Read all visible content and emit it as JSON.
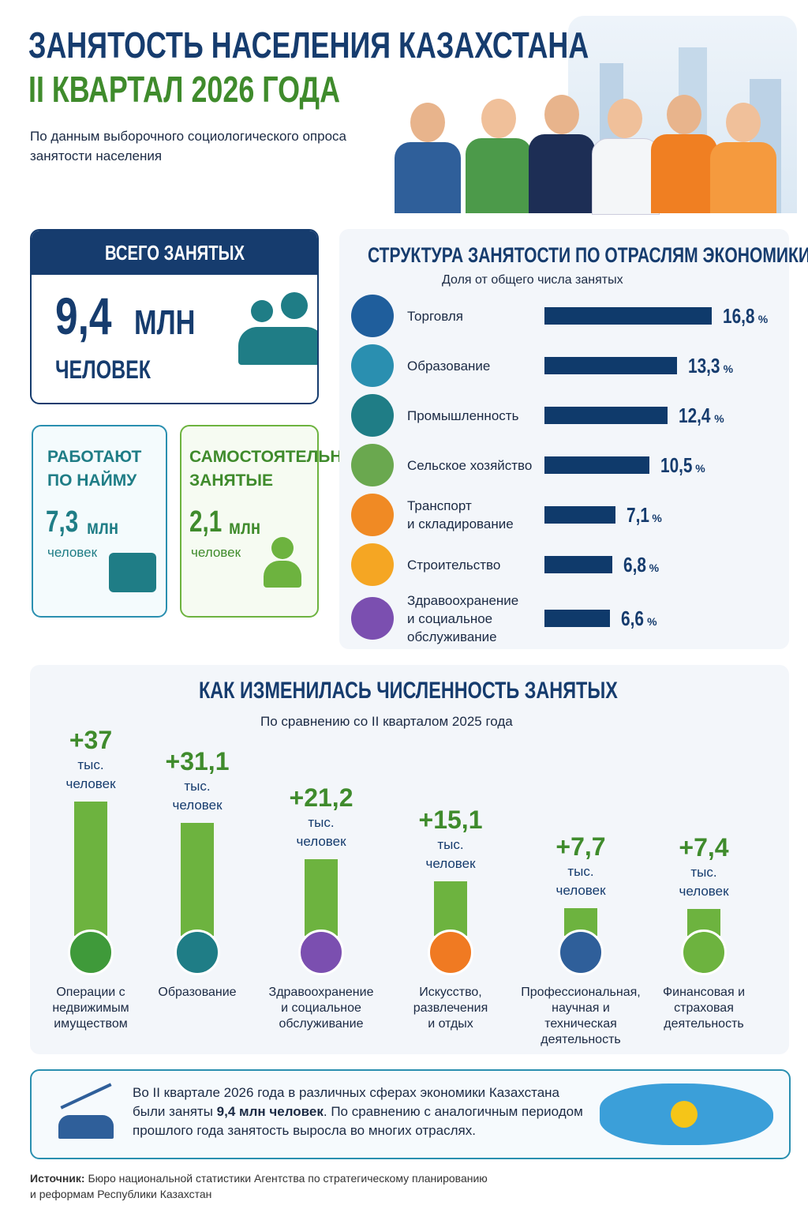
{
  "header": {
    "title_line1": "ЗАНЯТОСТЬ НАСЕЛЕНИЯ КАЗАХСТАНА",
    "title_line2": "II КВАРТАЛ 2026 ГОДА",
    "subtitle": "По данным выборочного социологического опроса\nзанятости населения"
  },
  "total": {
    "heading": "ВСЕГО ЗАНЯТЫХ",
    "value": "9,4",
    "unit": "МЛН",
    "people": "ЧЕЛОВЕК"
  },
  "hired": {
    "heading": "РАБОТАЮТ\nПО НАЙМУ",
    "value": "7,3",
    "unit": "млн",
    "people": "человек"
  },
  "self_employed": {
    "heading": "САМОСТОЯТЕЛЬНО\nЗАНЯТЫЕ",
    "value": "2,1",
    "unit": "млн",
    "people": "человек"
  },
  "structure": {
    "type": "bar",
    "title": "СТРУКТУРА ЗАНЯТОСТИ ПО ОТРАСЛЯМ ЭКОНОМИКИ",
    "subtitle": "Доля от общего числа занятых",
    "categories": [
      "Торговля",
      "Образование",
      "Промышленность",
      "Сельское хозяйство",
      "Транспорт\nи складирование",
      "Строительство",
      "Здравоохранение\nи социальное\nобслуживание"
    ],
    "values": [
      16.8,
      13.3,
      12.4,
      10.5,
      7.1,
      6.8,
      6.6
    ],
    "value_labels": [
      "16,8",
      "13,3",
      "12,4",
      "10,5",
      "7,1",
      "6,8",
      "6,6"
    ],
    "unit": "%",
    "color": "#0f3a6b"
  },
  "change": {
    "type": "bar",
    "title": "КАК ИЗМЕНИЛАСЬ ЧИСЛЕННОСТЬ ЗАНЯТЫХ",
    "subtitle": "По сравнению со II кварталом 2025 года",
    "categories": [
      "Операции с\nнедвижимым\nимуществом",
      "Образование",
      "Здравоохранение\nи социальное\nобслуживание",
      "Искусство,\nразвлечения\nи отдых",
      "Профессиональная,\nнаучная и\nтехническая\nдеятельность",
      "Финансовая и\nстраховая\nдеятельность"
    ],
    "values": [
      37,
      31.1,
      21.2,
      15.1,
      7.7,
      7.4
    ],
    "value_labels": [
      "+37",
      "+31,1",
      "+21,2",
      "+15,1",
      "+7,7",
      "+7,4"
    ],
    "unit": "тыс.\nчеловек",
    "color": "#6db33f"
  },
  "summary": {
    "text_before": "Во II квартале 2026 года в различных сферах экономики Казахстана были заняты ",
    "bold": "9,4 млн человек",
    "text_after": ". По сравнению с аналогичным периодом прошлого года занятость выросла во многих отраслях."
  },
  "source": {
    "label": "Источник:",
    "text": " Бюро национальной статистики Агентства по стратегическому планированию\nи реформам Республики Казахстан"
  }
}
